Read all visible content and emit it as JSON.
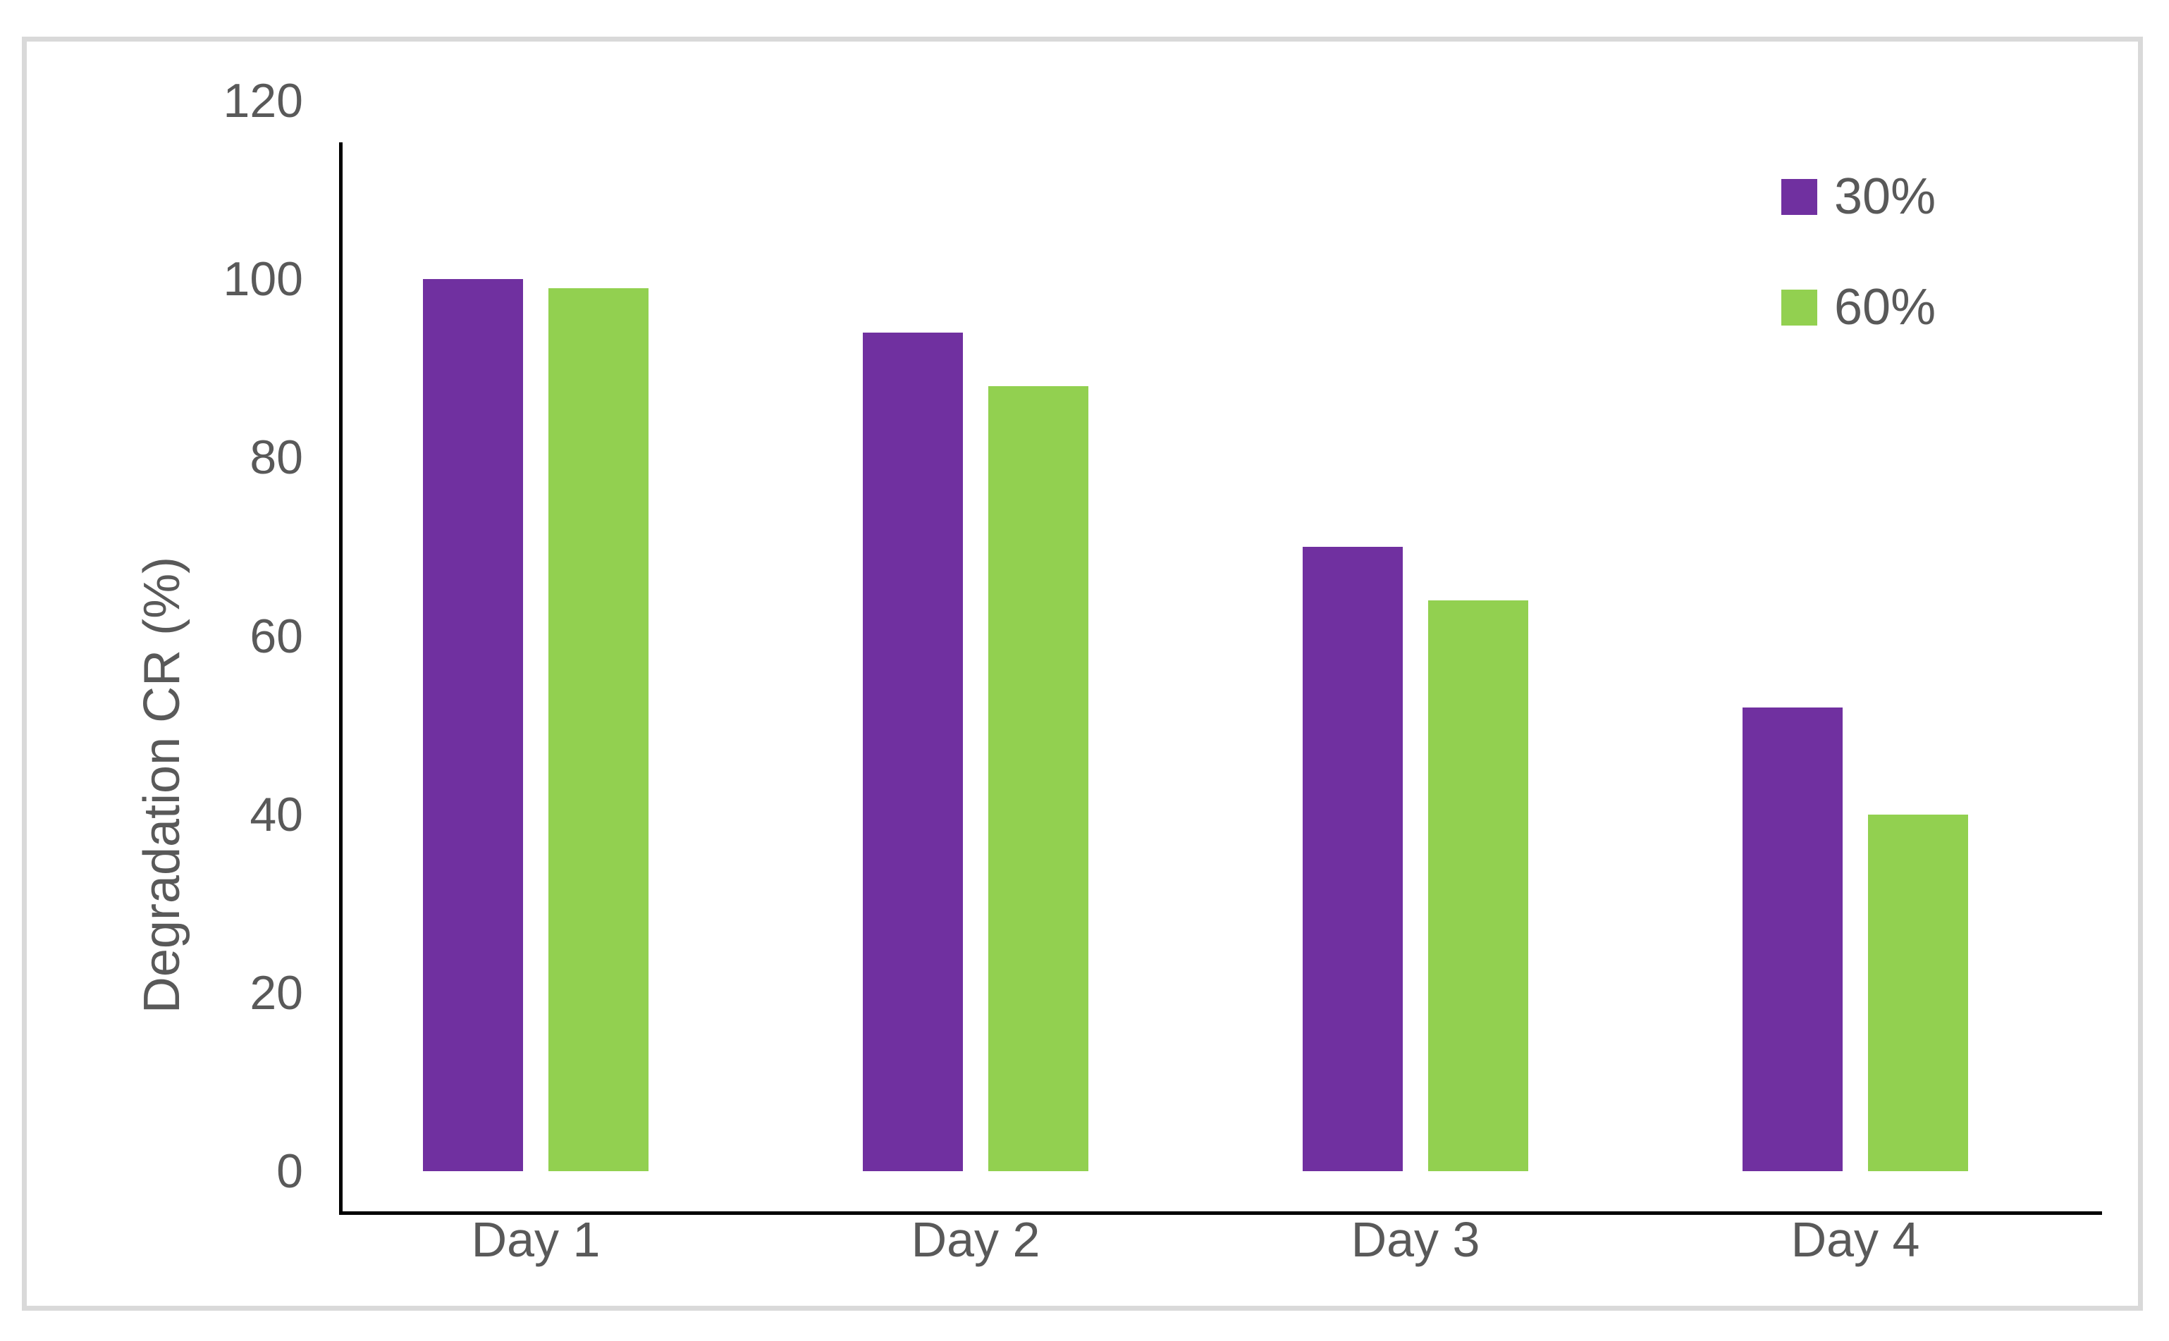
{
  "chart_data": {
    "type": "bar",
    "title": "",
    "categories": [
      "Day 1",
      "Day 2",
      "Day 3",
      "Day 4"
    ],
    "series": [
      {
        "name": "30%",
        "color": "#7030A0",
        "values": [
          100,
          94,
          70,
          52
        ]
      },
      {
        "name": "60%",
        "color": "#92D050",
        "values": [
          99,
          88,
          64,
          40
        ]
      }
    ],
    "xlabel": "",
    "ylabel": "Degradation CR (%)",
    "ylim": [
      0,
      120
    ],
    "yticks": [
      0,
      20,
      40,
      60,
      80,
      100,
      120
    ],
    "grid": false,
    "legend_position": "top-right"
  },
  "colors": {
    "frame_border": "#D9D9D9",
    "axis_line": "#000000",
    "text": "#595959",
    "background": "#FFFFFF"
  }
}
